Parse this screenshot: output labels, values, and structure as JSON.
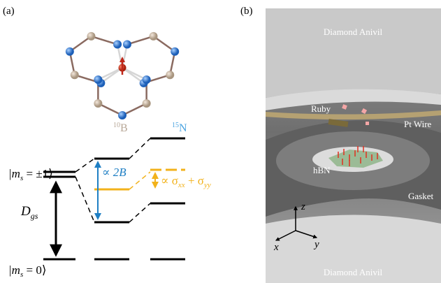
{
  "panel_a": {
    "label": "(a)",
    "boron": {
      "mass": "10",
      "symbol": "B"
    },
    "nitrogen": {
      "mass": "15",
      "symbol": "N"
    },
    "ket_pm1": [
      "|m",
      "s",
      " = ±1⟩"
    ],
    "ket_0": [
      "|m",
      "s",
      " = 0⟩"
    ],
    "zeeman": "∝ 2B",
    "strain": [
      "∝ σ",
      "xx",
      " + σ",
      "yy"
    ],
    "dgs": [
      "D",
      "gs"
    ]
  },
  "panel_b": {
    "label": "(b)",
    "top_anvil": "Diamond Anivil",
    "ruby": "Ruby",
    "pt_wire": "Pt Wire",
    "hbn": "hBN",
    "gasket": "Gasket",
    "axis_z": "z",
    "axis_x": "x",
    "axis_y": "y",
    "bottom_anvil": "Diamond Anivil"
  }
}
